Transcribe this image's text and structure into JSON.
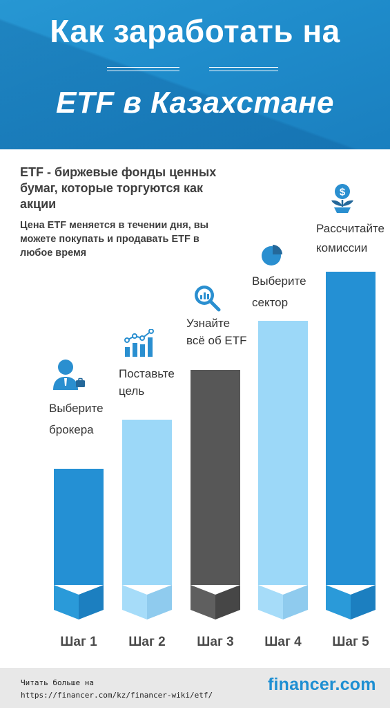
{
  "header": {
    "title_line1": "Как заработать на",
    "title_line2": "ETF в Казахстане"
  },
  "intro": {
    "main": "ETF - биржевые фонды ценных бумаг, которые торгуются как акции",
    "sub": "Цена ETF меняется в течении дня, вы можете покупать и продавать ETF в любое время"
  },
  "steps": [
    {
      "label": "Шаг 1",
      "caption_line1": "Выберите",
      "caption_line2": "брокера",
      "icon": "broker-person-icon",
      "level": 1
    },
    {
      "label": "Шаг 2",
      "caption_line1": "Поставьте",
      "caption_line2": "цель",
      "icon": "growth-chart-icon",
      "level": 2
    },
    {
      "label": "Шаг 3",
      "caption_line1": "Узнайте",
      "caption_line2": "всё об ETF",
      "icon": "magnifier-chart-icon",
      "level": 3
    },
    {
      "label": "Шаг 4",
      "caption_line1": "Выберите",
      "caption_line2": "сектор",
      "icon": "pie-chart-icon",
      "level": 4
    },
    {
      "label": "Шаг 5",
      "caption_line1": "Рассчитайте",
      "caption_line2": "комиссии",
      "icon": "dollar-plant-icon",
      "level": 5
    }
  ],
  "colors": {
    "header_blue": "#1f8ccb",
    "bar_blue": "#2490d4",
    "bar_light": "#9cd8f8",
    "bar_dark": "#575757",
    "brand_blue": "#1e8fd2"
  },
  "footer": {
    "read_more": "Читать больше на",
    "url": "https://financer.com/kz/financer-wiki/etf/",
    "brand": "financer.com"
  }
}
